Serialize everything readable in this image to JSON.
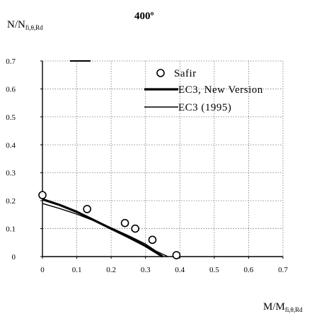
{
  "chart_data": {
    "type": "scatter",
    "title": "400º",
    "ylabel": {
      "main": "N/N",
      "sub": "fi,θ,Rd"
    },
    "xlabel": {
      "main": "M/M",
      "sub": "fi,θ,Rd"
    },
    "xlim": [
      0,
      0.7
    ],
    "ylim": [
      0,
      0.7
    ],
    "xticks": [
      "0",
      "0.1",
      "0.2",
      "0.3",
      "0.4",
      "0.5",
      "0.6",
      "0.7"
    ],
    "yticks": [
      "0",
      "0.1",
      "0.2",
      "0.3",
      "0.4",
      "0.5",
      "0.6",
      "0.7"
    ],
    "grid": true,
    "legend_position": "top-right",
    "series": [
      {
        "name": "Safir",
        "kind": "markers",
        "points": [
          [
            0.0,
            0.22
          ],
          [
            0.13,
            0.17
          ],
          [
            0.24,
            0.12
          ],
          [
            0.27,
            0.1
          ],
          [
            0.32,
            0.06
          ],
          [
            0.39,
            0.005
          ]
        ]
      },
      {
        "name": "EC3, New Version",
        "kind": "thick-line",
        "points": [
          [
            0.0,
            0.205
          ],
          [
            0.05,
            0.185
          ],
          [
            0.1,
            0.16
          ],
          [
            0.15,
            0.13
          ],
          [
            0.2,
            0.1
          ],
          [
            0.25,
            0.07
          ],
          [
            0.3,
            0.038
          ],
          [
            0.35,
            0.0
          ]
        ]
      },
      {
        "name": "EC3 (1995)",
        "kind": "thin-line",
        "points": [
          [
            0.0,
            0.19
          ],
          [
            0.05,
            0.172
          ],
          [
            0.1,
            0.152
          ],
          [
            0.15,
            0.128
          ],
          [
            0.2,
            0.103
          ],
          [
            0.25,
            0.075
          ],
          [
            0.3,
            0.045
          ],
          [
            0.33,
            0.02
          ],
          [
            0.365,
            0.0
          ]
        ]
      }
    ]
  }
}
